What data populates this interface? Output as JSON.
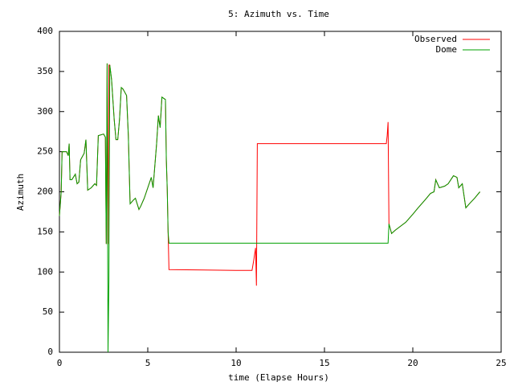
{
  "chart_data": {
    "type": "line",
    "title": "5: Azimuth vs. Time",
    "xlabel": "time (Elapse Hours)",
    "ylabel": "Azimuth",
    "xlim": [
      0,
      25
    ],
    "xticks": [
      0,
      5,
      10,
      15,
      20,
      25
    ],
    "ylim": [
      0,
      400
    ],
    "yticks": [
      0,
      50,
      100,
      150,
      200,
      250,
      300,
      350,
      400
    ],
    "grid": false,
    "legend": "top-right",
    "series": [
      {
        "name": "Observed",
        "color": "#ff0000",
        "x": [
          0,
          0.1,
          0.15,
          0.4,
          0.5,
          0.55,
          0.6,
          0.7,
          0.9,
          1.0,
          1.1,
          1.2,
          1.4,
          1.5,
          1.6,
          1.8,
          2.0,
          2.1,
          2.2,
          2.5,
          2.6,
          2.65,
          2.7,
          2.75,
          2.8,
          2.85,
          2.95,
          3.1,
          3.2,
          3.3,
          3.4,
          3.5,
          3.6,
          3.8,
          3.9,
          4.0,
          4.2,
          4.3,
          4.5,
          4.6,
          4.8,
          5.0,
          5.2,
          5.3,
          5.5,
          5.6,
          5.7,
          5.8,
          6.0,
          6.05,
          6.1,
          6.15,
          6.2,
          10.0,
          10.9,
          11.0,
          11.1,
          11.15,
          11.2,
          18.5,
          18.55,
          18.6,
          18.65,
          18.8,
          19.0,
          19.3,
          19.6,
          20.0,
          20.3,
          20.7,
          21.0,
          21.2,
          21.3,
          21.5,
          21.8,
          22.0,
          22.3,
          22.5,
          22.6,
          22.8,
          23.0,
          23.2,
          23.5,
          23.8
        ],
        "values": [
          170,
          200,
          250,
          250,
          245,
          260,
          215,
          215,
          222,
          210,
          212,
          240,
          248,
          265,
          202,
          205,
          210,
          208,
          270,
          272,
          268,
          135,
          360,
          135,
          358,
          358,
          340,
          290,
          265,
          265,
          290,
          330,
          328,
          320,
          270,
          185,
          190,
          192,
          178,
          182,
          192,
          205,
          218,
          205,
          260,
          295,
          280,
          318,
          315,
          240,
          205,
          150,
          103,
          102,
          102,
          115,
          130,
          83,
          260,
          260,
          270,
          287,
          160,
          148,
          152,
          157,
          162,
          172,
          180,
          190,
          198,
          200,
          215,
          205,
          207,
          210,
          220,
          218,
          205,
          210,
          180,
          185,
          192,
          200
        ]
      },
      {
        "name": "Dome",
        "color": "#00a000",
        "x": [
          0,
          0.1,
          0.15,
          0.4,
          0.5,
          0.55,
          0.6,
          0.7,
          0.9,
          1.0,
          1.1,
          1.2,
          1.4,
          1.5,
          1.6,
          1.8,
          2.0,
          2.1,
          2.2,
          2.5,
          2.6,
          2.65,
          2.7,
          2.75,
          2.8,
          2.85,
          2.95,
          3.1,
          3.2,
          3.3,
          3.4,
          3.5,
          3.6,
          3.8,
          3.9,
          4.0,
          4.2,
          4.3,
          4.5,
          4.6,
          4.8,
          5.0,
          5.2,
          5.3,
          5.5,
          5.6,
          5.7,
          5.8,
          6.0,
          6.05,
          6.1,
          6.15,
          6.2,
          18.6,
          18.65,
          18.8,
          19.0,
          19.3,
          19.6,
          20.0,
          20.3,
          20.7,
          21.0,
          21.2,
          21.3,
          21.5,
          21.8,
          22.0,
          22.3,
          22.5,
          22.6,
          22.8,
          23.0,
          23.2,
          23.5,
          23.8
        ],
        "values": [
          170,
          200,
          250,
          250,
          245,
          260,
          215,
          215,
          222,
          210,
          212,
          240,
          248,
          265,
          202,
          205,
          210,
          208,
          270,
          272,
          268,
          135,
          360,
          0,
          90,
          358,
          340,
          290,
          265,
          265,
          290,
          330,
          328,
          320,
          270,
          185,
          190,
          192,
          178,
          182,
          192,
          205,
          218,
          205,
          260,
          295,
          280,
          318,
          315,
          240,
          205,
          150,
          136,
          136,
          160,
          148,
          152,
          157,
          162,
          172,
          180,
          190,
          198,
          200,
          215,
          205,
          207,
          210,
          220,
          218,
          205,
          210,
          180,
          185,
          192,
          200
        ]
      }
    ]
  }
}
